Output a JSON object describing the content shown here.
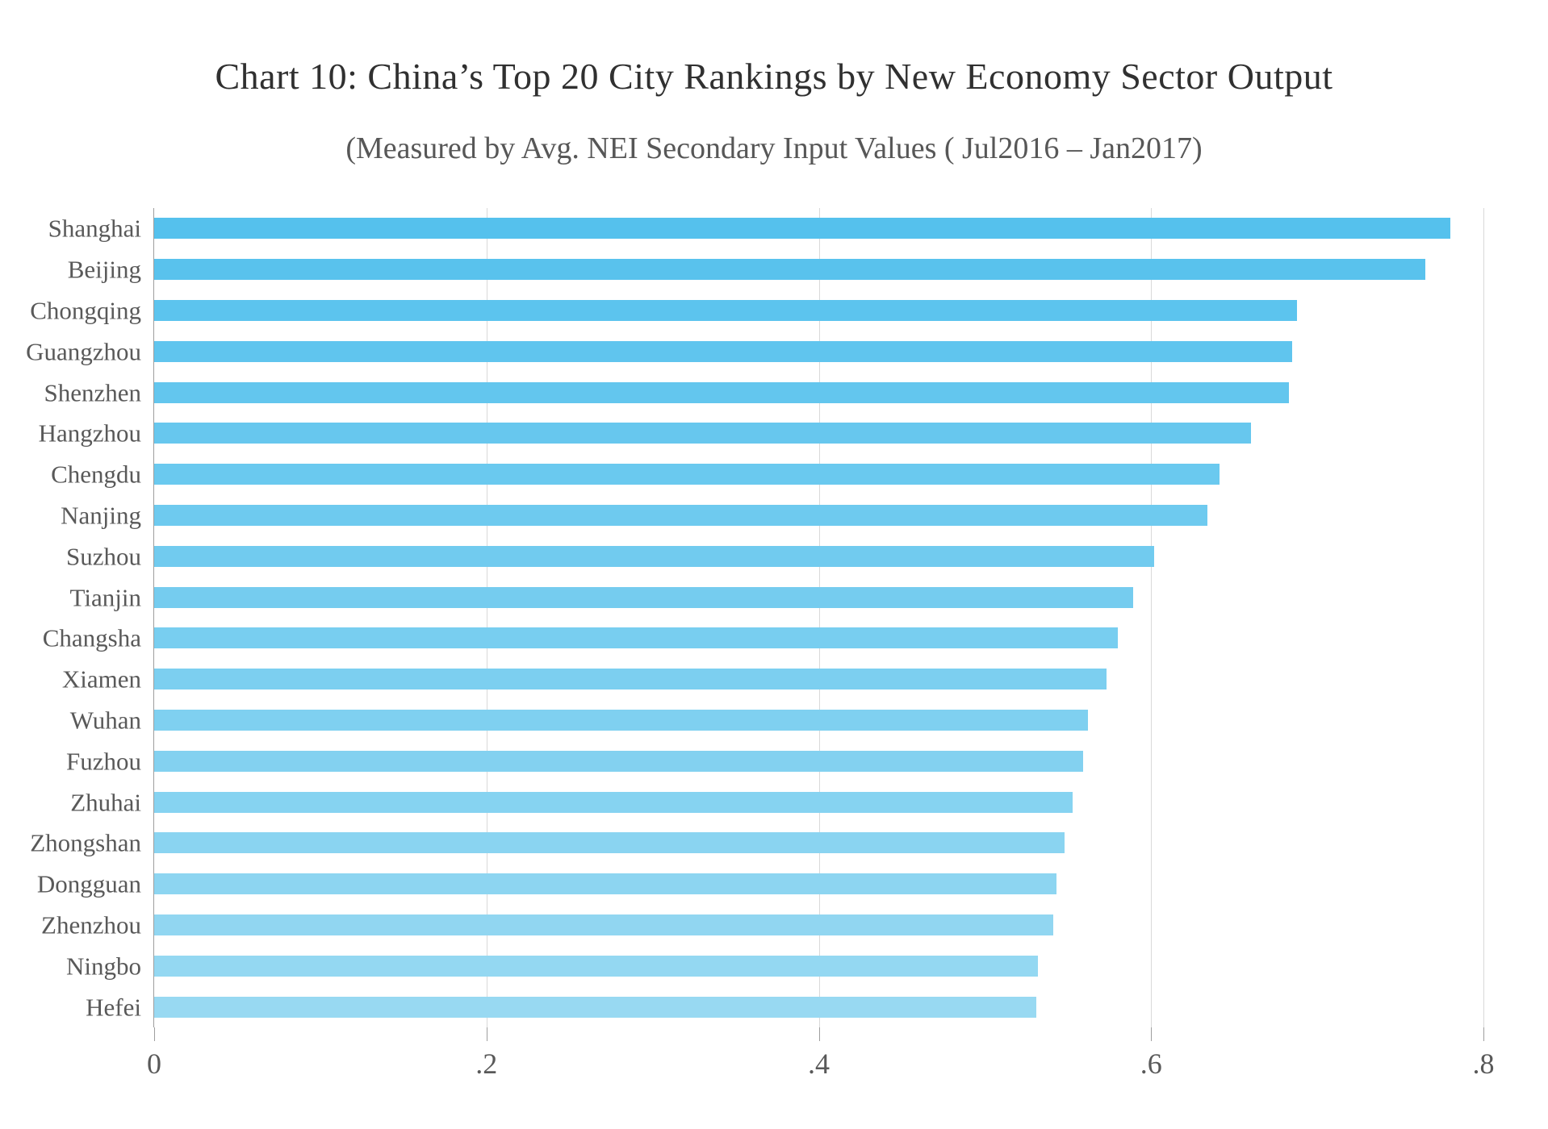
{
  "chart": {
    "title": "Chart 10: China’s Top 20 City Rankings by New Economy Sector Output",
    "subtitle": "(Measured by Avg. NEI Secondary Input Values ( Jul2016 – Jan2017)"
  },
  "chart_data": {
    "type": "bar",
    "orientation": "horizontal",
    "title": "Chart 10: China’s Top 20 City Rankings by New Economy Sector Output",
    "subtitle": "(Measured by Avg. NEI Secondary Input Values ( Jul2016 – Jan2017)",
    "xlabel": "",
    "ylabel": "",
    "xlim": [
      0,
      0.8
    ],
    "grid": "vertical gridlines on, light gray",
    "legend": "none",
    "categories": [
      "Shanghai",
      "Beijing",
      "Chongqing",
      "Guangzhou",
      "Shenzhen",
      "Hangzhou",
      "Chengdu",
      "Nanjing",
      "Suzhou",
      "Tianjin",
      "Changsha",
      "Xiamen",
      "Wuhan",
      "Fuzhou",
      "Zhuhai",
      "Zhongshan",
      "Dongguan",
      "Zhenzhou",
      "Ningbo",
      "Hefei"
    ],
    "values": [
      0.78,
      0.765,
      0.688,
      0.685,
      0.683,
      0.66,
      0.641,
      0.634,
      0.602,
      0.589,
      0.58,
      0.573,
      0.562,
      0.559,
      0.553,
      0.548,
      0.543,
      0.541,
      0.532,
      0.531
    ],
    "bar_colors": [
      "#55C1ED",
      "#59C2ED",
      "#5CC4EE",
      "#60C5EE",
      "#63C6EE",
      "#67C7EE",
      "#6AC9EF",
      "#6ECAEF",
      "#71CBEF",
      "#75CCEF",
      "#78CEF0",
      "#7CCFF0",
      "#7FD0F0",
      "#83D1F0",
      "#86D3F1",
      "#8AD4F1",
      "#8DD5F1",
      "#91D6F1",
      "#94D8F2",
      "#98D9F2"
    ],
    "xticks": {
      "values": [
        0,
        0.2,
        0.4,
        0.6,
        0.8
      ],
      "labels": [
        "0",
        ".2",
        ".4",
        ".6",
        ".8"
      ]
    },
    "colors": {
      "axis_line": "#9e9e9e",
      "gridline": "#d9d9d9",
      "title_text": "#303030",
      "subtitle_text": "#575757",
      "label_text": "#595959"
    }
  }
}
